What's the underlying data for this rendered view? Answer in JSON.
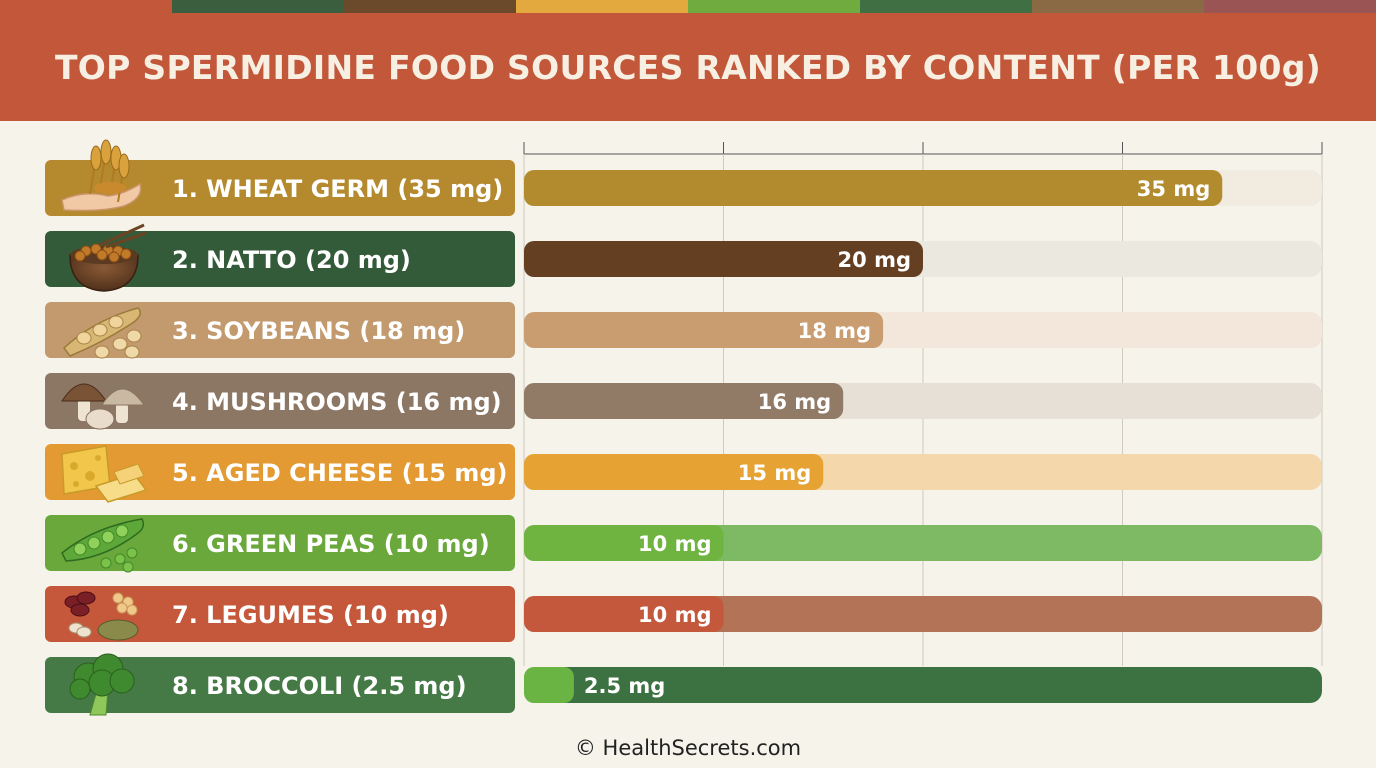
{
  "title": "TOP SPERMIDINE FOOD SOURCES RANKED BY CONTENT (PER 100g)",
  "footer": "© HealthSecrets.com",
  "colors": {
    "header": "#c2573a",
    "strip": [
      "#c2573a",
      "#3b5e3f",
      "#6b4a2b",
      "#e3a93e",
      "#6fab3e",
      "#3f6f43",
      "#8a6a45",
      "#9a5454"
    ]
  },
  "chart_data": {
    "type": "bar",
    "orientation": "horizontal",
    "title": "TOP SPERMIDINE FOOD SOURCES RANKED BY CONTENT (PER 100g)",
    "unit": "mg",
    "xlim": [
      0,
      40
    ],
    "grid": true,
    "categories": [
      "1. WHEAT GERM (35 mg)",
      "2. NATTO (20 mg)",
      "3. SOYBEANS (18 mg)",
      "4. MUSHROOMS (16 mg)",
      "5. AGED CHEESE (15 mg)",
      "6. GREEN PEAS (10 mg)",
      "7. LEGUMES (10 mg)",
      "8. BROCCOLI (2.5 mg)"
    ],
    "values": [
      35,
      20,
      18,
      16,
      15,
      10,
      10,
      2.5
    ],
    "data_labels": [
      "35 mg",
      "20 mg",
      "18 mg",
      "16 mg",
      "15 mg",
      "10 mg",
      "10 mg",
      "2.5 mg"
    ],
    "icons": [
      "wheat-germ-icon",
      "natto-icon",
      "soybeans-icon",
      "mushrooms-icon",
      "cheese-icon",
      "green-peas-icon",
      "legumes-icon",
      "broccoli-icon"
    ],
    "label_colors": [
      "#b58a2e",
      "#335a39",
      "#c29a6e",
      "#8c7664",
      "#e39a32",
      "#6aa83c",
      "#c5573b",
      "#457a46"
    ],
    "bar_colors": [
      "#b38b2f",
      "#653f22",
      "#c99d70",
      "#917a66",
      "#e6a233",
      "#6fb441",
      "#c4583c",
      "#6ab443"
    ],
    "track_colors": [
      "#f1ecdf",
      "#ebe8df",
      "#f3e6da",
      "#e6e0d6",
      "#f4d7ab",
      "#7dba63",
      "#b27357",
      "#3c7242"
    ]
  }
}
